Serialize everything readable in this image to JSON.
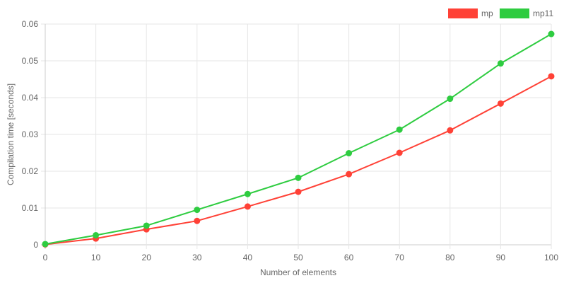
{
  "chart_data": {
    "type": "line",
    "title": "",
    "xlabel": "Number of elements",
    "ylabel": "Compilation time [seconds]",
    "x": [
      0,
      10,
      20,
      30,
      40,
      50,
      60,
      70,
      80,
      90,
      100
    ],
    "x_ticks": [
      "0",
      "10",
      "20",
      "30",
      "40",
      "50",
      "60",
      "70",
      "80",
      "90",
      "100"
    ],
    "y_ticks": [
      "0",
      "0.01",
      "0.02",
      "0.03",
      "0.04",
      "0.05",
      "0.06"
    ],
    "ylim": [
      0,
      0.06
    ],
    "xlim": [
      0,
      100
    ],
    "grid": true,
    "legend_position": "top-right",
    "series": [
      {
        "name": "mp",
        "color": "#ff4136",
        "values": [
          0.0001,
          0.0017,
          0.0042,
          0.0065,
          0.0104,
          0.0144,
          0.0192,
          0.025,
          0.0311,
          0.0384,
          0.0458
        ]
      },
      {
        "name": "mp11",
        "color": "#2ecc40",
        "values": [
          0.0002,
          0.0026,
          0.0052,
          0.0095,
          0.0138,
          0.0182,
          0.0249,
          0.0313,
          0.0397,
          0.0493,
          0.0573
        ]
      }
    ]
  }
}
